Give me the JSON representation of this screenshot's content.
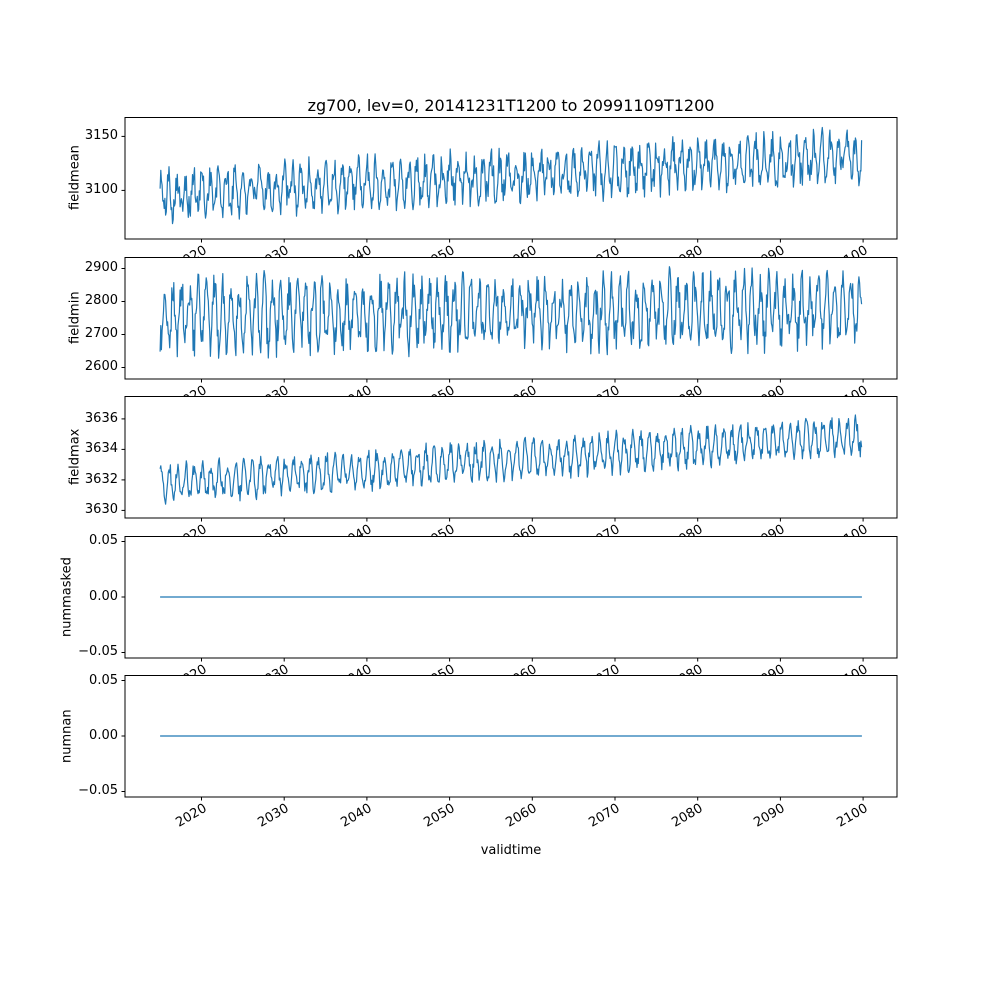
{
  "figure": {
    "title": "zg700, lev=0, 20141231T1200 to 20991109T1200",
    "xlabel": "validtime",
    "line_color": "#1f77b4",
    "background": "#ffffff",
    "text_color": "#000000"
  },
  "chart_data": [
    {
      "type": "line",
      "ylabel": "fieldmean",
      "xlim": [
        2010.75,
        2104.1
      ],
      "ylim": [
        3055,
        3168
      ],
      "ytick_values": [
        3150,
        3100
      ],
      "ytick_labels": [
        "3150",
        "3100"
      ],
      "xtick_values": [
        2020,
        2030,
        2040,
        2050,
        2060,
        2070,
        2080,
        2090,
        2100
      ],
      "xtick_labels": [
        "2020",
        "2030",
        "2040",
        "2050",
        "2060",
        "2070",
        "2080",
        "2090",
        "2100"
      ],
      "x_start": 2014.99,
      "x_end": 2099.86,
      "grid": false,
      "legend": "none",
      "series": [
        {
          "name": "fieldmean",
          "color": "#1f77b4",
          "approx_value_range": [
            3060,
            3165
          ],
          "generator": {
            "kind": "seasonal-noise",
            "base": 3096,
            "ref_year": 2015,
            "trend_per_year": 0.42,
            "seasonal_amplitude": 16,
            "noise_amplitude": 13,
            "phase": 1.3,
            "points_per_year": 12,
            "seed": 101
          }
        }
      ]
    },
    {
      "type": "line",
      "ylabel": "fieldmin",
      "xlim": [
        2010.75,
        2104.1
      ],
      "ylim": [
        2565,
        2935
      ],
      "ytick_values": [
        2900,
        2800,
        2700,
        2600
      ],
      "ytick_labels": [
        "2900",
        "2800",
        "2700",
        "2600"
      ],
      "xtick_values": [
        2020,
        2030,
        2040,
        2050,
        2060,
        2070,
        2080,
        2090,
        2100
      ],
      "xtick_labels": [
        "2020",
        "2030",
        "2040",
        "2050",
        "2060",
        "2070",
        "2080",
        "2090",
        "2100"
      ],
      "x_start": 2014.99,
      "x_end": 2099.86,
      "grid": false,
      "legend": "none",
      "series": [
        {
          "name": "fieldmin",
          "color": "#1f77b4",
          "approx_value_range": [
            2580,
            2925
          ],
          "generator": {
            "kind": "seasonal-noise",
            "base": 2756,
            "ref_year": 2015,
            "trend_per_year": 0.28,
            "seasonal_amplitude": 80,
            "noise_amplitude": 55,
            "phase": 4.2,
            "points_per_year": 12,
            "seed": 202
          }
        }
      ]
    },
    {
      "type": "line",
      "ylabel": "fieldmax",
      "xlim": [
        2010.75,
        2104.1
      ],
      "ylim": [
        3629.5,
        3637.5
      ],
      "ytick_values": [
        3636,
        3634,
        3632,
        3630
      ],
      "ytick_labels": [
        "3636",
        "3634",
        "3632",
        "3630"
      ],
      "xtick_values": [
        2020,
        2030,
        2040,
        2050,
        2060,
        2070,
        2080,
        2090,
        2100
      ],
      "xtick_labels": [
        "2020",
        "2030",
        "2040",
        "2050",
        "2060",
        "2070",
        "2080",
        "2090",
        "2100"
      ],
      "x_start": 2014.99,
      "x_end": 2099.86,
      "grid": false,
      "legend": "none",
      "series": [
        {
          "name": "fieldmax",
          "color": "#1f77b4",
          "approx_value_range": [
            3630.3,
            3637
          ],
          "generator": {
            "kind": "seasonal-noise",
            "base": 3631.7,
            "ref_year": 2015,
            "trend_per_year": 0.038,
            "seasonal_amplitude": 1.0,
            "noise_amplitude": 0.5,
            "phase": 0.7,
            "points_per_year": 12,
            "seed": 303
          }
        }
      ]
    },
    {
      "type": "line",
      "ylabel": "nummasked",
      "xlim": [
        2010.75,
        2104.1
      ],
      "ylim": [
        -0.055,
        0.055
      ],
      "ytick_values": [
        0.05,
        0.0,
        -0.05
      ],
      "ytick_labels": [
        "0.05",
        "0.00",
        "−0.05"
      ],
      "xtick_values": [
        2020,
        2030,
        2040,
        2050,
        2060,
        2070,
        2080,
        2090,
        2100
      ],
      "xtick_labels": [
        "2020",
        "2030",
        "2040",
        "2050",
        "2060",
        "2070",
        "2080",
        "2090",
        "2100"
      ],
      "x_start": 2014.99,
      "x_end": 2099.86,
      "grid": false,
      "legend": "none",
      "series": [
        {
          "name": "nummasked",
          "color": "#1f77b4",
          "approx_value_range": [
            0,
            0
          ],
          "generator": {
            "kind": "constant",
            "value": 0
          }
        }
      ]
    },
    {
      "type": "line",
      "ylabel": "numnan",
      "xlim": [
        2010.75,
        2104.1
      ],
      "ylim": [
        -0.055,
        0.055
      ],
      "ytick_values": [
        0.05,
        0.0,
        -0.05
      ],
      "ytick_labels": [
        "0.05",
        "0.00",
        "−0.05"
      ],
      "xtick_values": [
        2020,
        2030,
        2040,
        2050,
        2060,
        2070,
        2080,
        2090,
        2100
      ],
      "xtick_labels": [
        "2020",
        "2030",
        "2040",
        "2050",
        "2060",
        "2070",
        "2080",
        "2090",
        "2100"
      ],
      "x_start": 2014.99,
      "x_end": 2099.86,
      "grid": false,
      "legend": "none",
      "series": [
        {
          "name": "numnan",
          "color": "#1f77b4",
          "approx_value_range": [
            0,
            0
          ],
          "generator": {
            "kind": "constant",
            "value": 0
          }
        }
      ]
    }
  ]
}
